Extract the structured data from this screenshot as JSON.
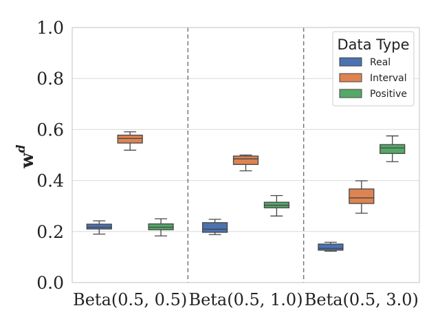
{
  "chart_data": {
    "type": "box",
    "title": "",
    "xlabel": "",
    "ylabel": "w",
    "ylabel_superscript": "d",
    "ylim": [
      0.0,
      1.0
    ],
    "yticks": [
      "0.0",
      "0.2",
      "0.4",
      "0.6",
      "0.8",
      "1.0"
    ],
    "grid": "horizontal",
    "categories": [
      "Beta(0.5, 0.5)",
      "Beta(0.5, 1.0)",
      "Beta(0.5, 3.0)"
    ],
    "legend": {
      "title": "Data Type",
      "placement": "top-right"
    },
    "series": [
      {
        "name": "Real",
        "color": "#4c72b0",
        "boxes": [
          {
            "whisker_low": 0.19,
            "q1": 0.21,
            "median": 0.217,
            "q3": 0.229,
            "whisker_high": 0.242
          },
          {
            "whisker_low": 0.188,
            "q1": 0.197,
            "median": 0.209,
            "q3": 0.235,
            "whisker_high": 0.248
          },
          {
            "whisker_low": 0.123,
            "q1": 0.127,
            "median": 0.134,
            "q3": 0.151,
            "whisker_high": 0.158
          }
        ]
      },
      {
        "name": "Interval",
        "color": "#dd8452",
        "boxes": [
          {
            "whisker_low": 0.519,
            "q1": 0.547,
            "median": 0.565,
            "q3": 0.578,
            "whisker_high": 0.591
          },
          {
            "whisker_low": 0.438,
            "q1": 0.463,
            "median": 0.485,
            "q3": 0.496,
            "whisker_high": 0.5
          },
          {
            "whisker_low": 0.272,
            "q1": 0.31,
            "median": 0.332,
            "q3": 0.367,
            "whisker_high": 0.399
          }
        ]
      },
      {
        "name": "Positive",
        "color": "#55a868",
        "boxes": [
          {
            "whisker_low": 0.183,
            "q1": 0.207,
            "median": 0.217,
            "q3": 0.23,
            "whisker_high": 0.25
          },
          {
            "whisker_low": 0.261,
            "q1": 0.293,
            "median": 0.303,
            "q3": 0.315,
            "whisker_high": 0.341
          },
          {
            "whisker_low": 0.474,
            "q1": 0.506,
            "median": 0.528,
            "q3": 0.541,
            "whisker_high": 0.575
          }
        ]
      }
    ]
  }
}
